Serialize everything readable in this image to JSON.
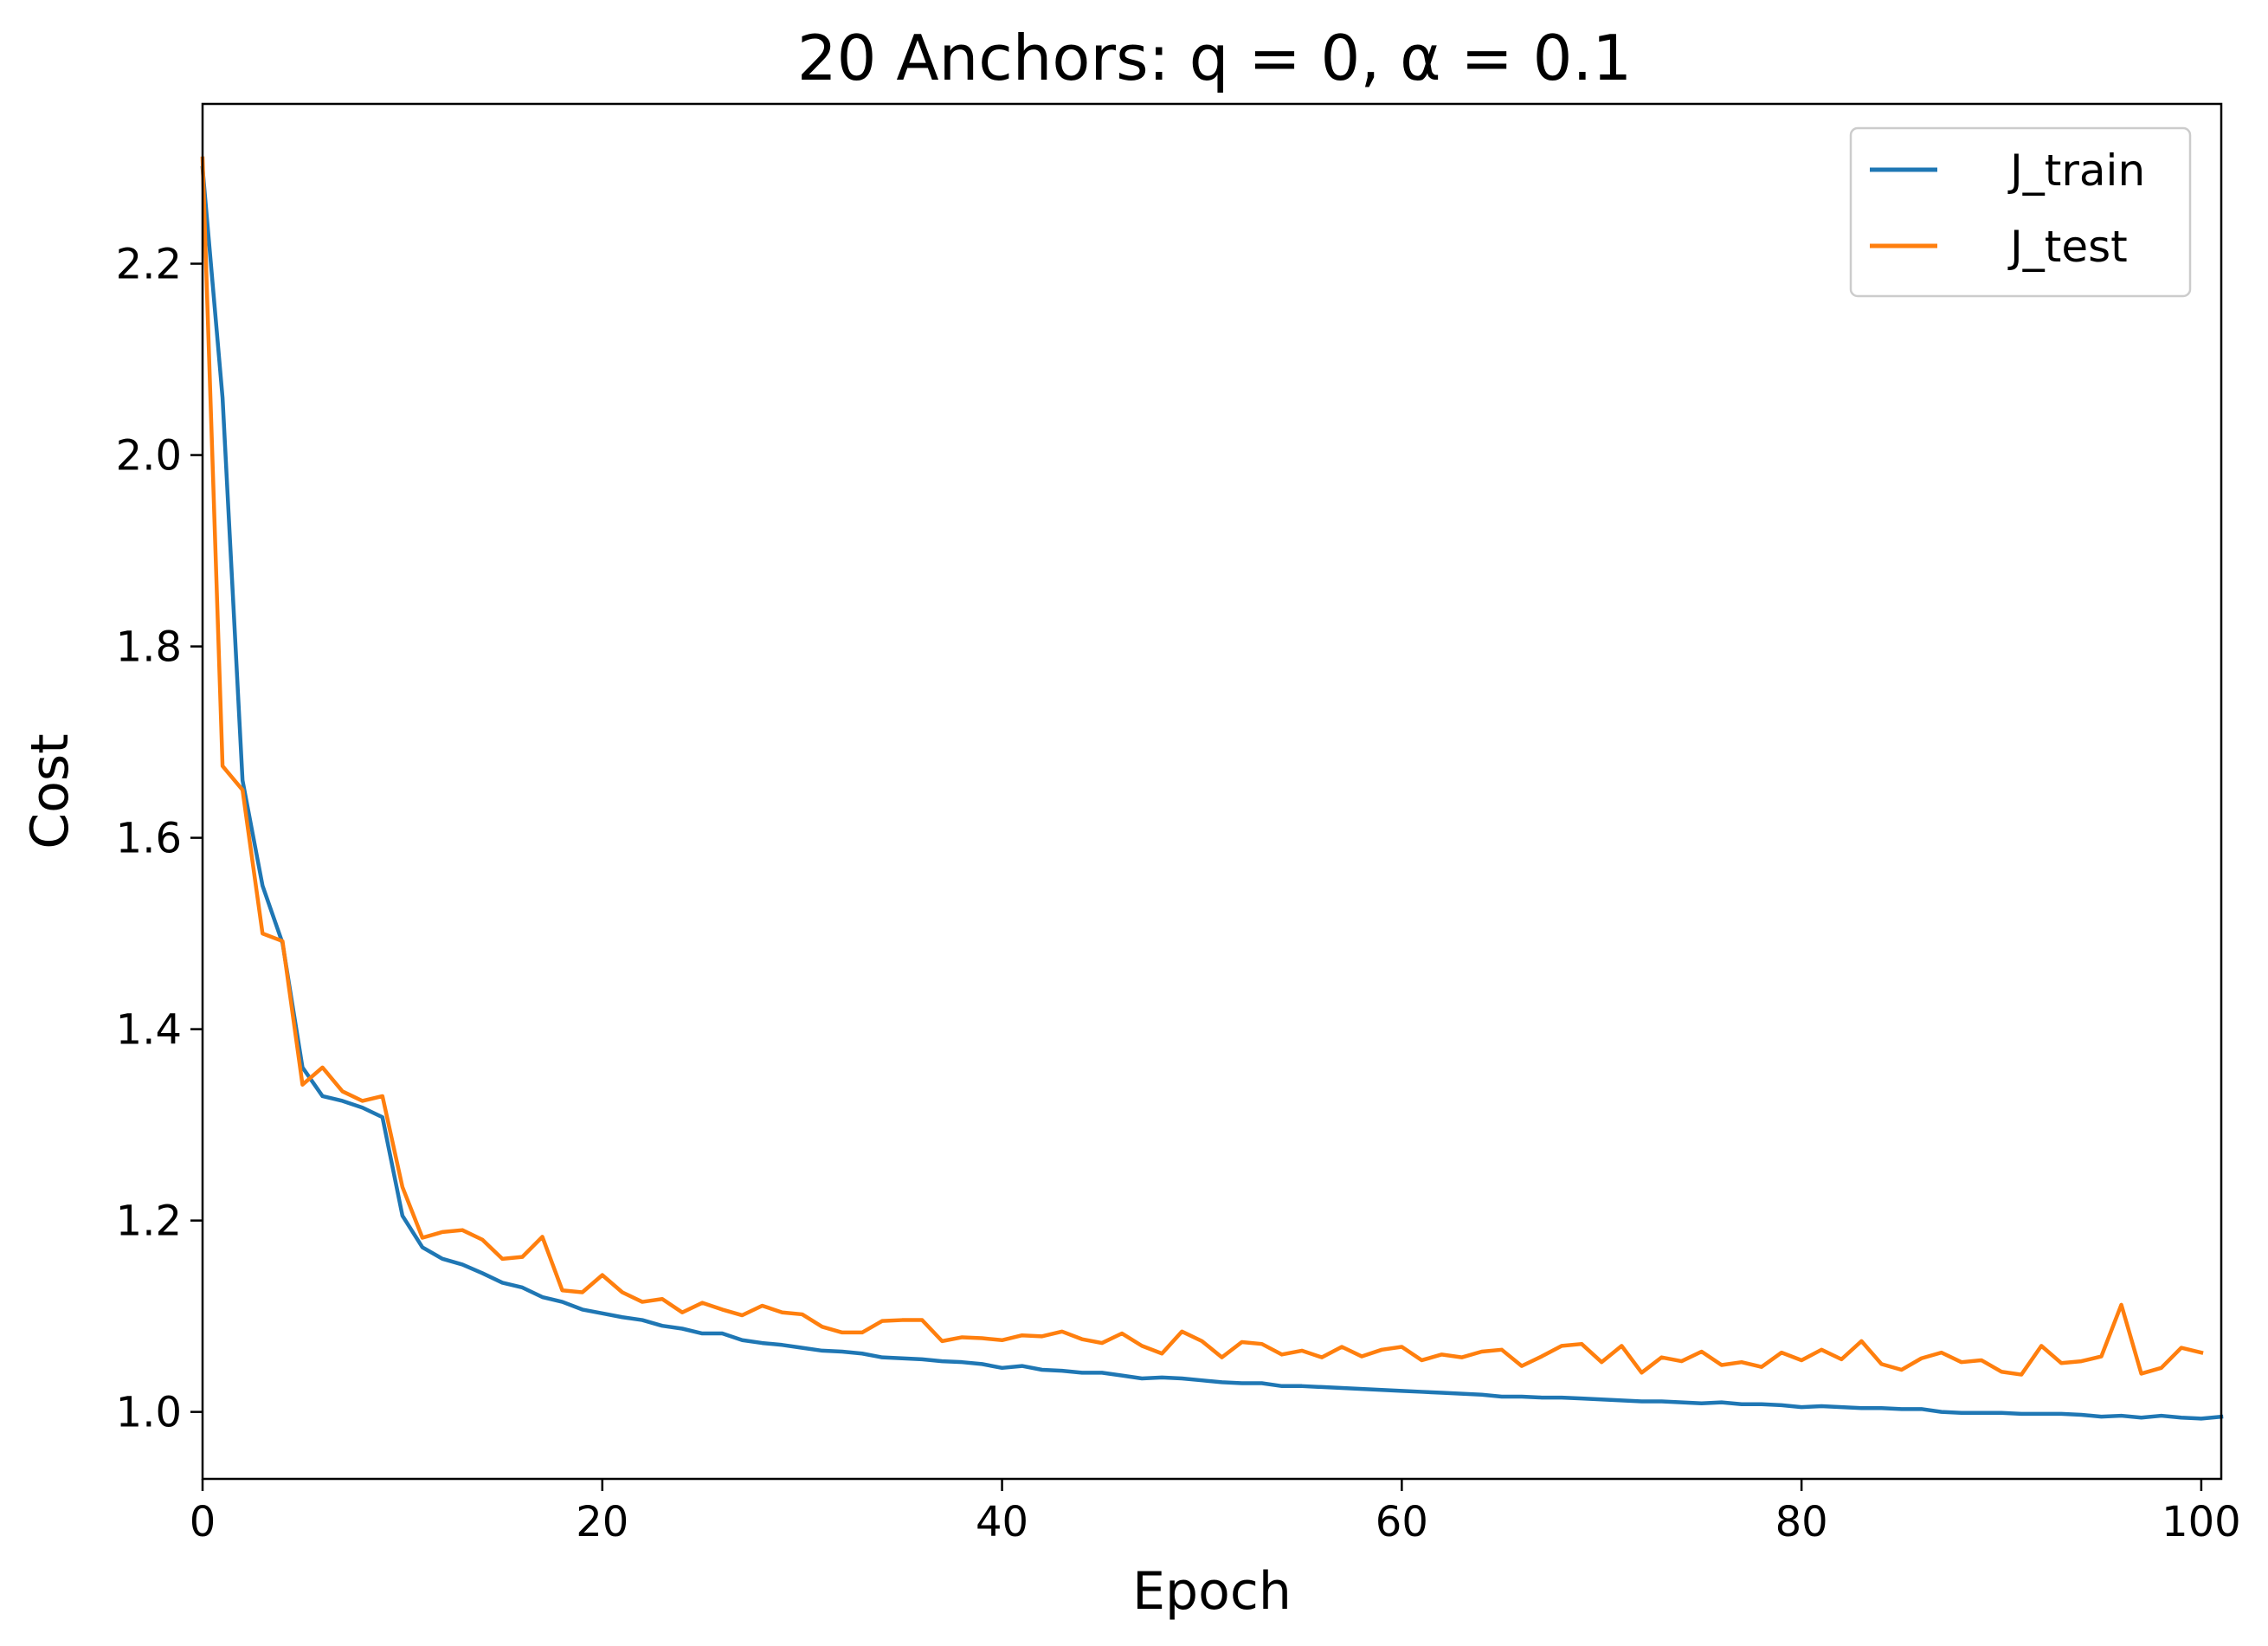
{
  "chart_data": {
    "type": "line",
    "title": "20 Anchors: q = 0, α = 0.1",
    "xlabel": "Epoch",
    "ylabel": "Cost",
    "xlim": [
      0,
      101
    ],
    "ylim": [
      0.93,
      2.367
    ],
    "xticks": [
      0,
      20,
      40,
      60,
      80,
      100
    ],
    "xtick_labels": [
      "0",
      "20",
      "40",
      "60",
      "80",
      "100"
    ],
    "yticks": [
      1.0,
      1.2,
      1.4,
      1.6,
      1.8,
      2.0,
      2.2
    ],
    "ytick_labels": [
      "1.0",
      "1.2",
      "1.4",
      "1.6",
      "1.8",
      "2.0",
      "2.2"
    ],
    "grid": false,
    "legend_position": "top-right",
    "series": [
      {
        "name": "J_train",
        "color": "#1f77b4",
        "values": [
          2.3,
          2.06,
          1.66,
          1.55,
          1.49,
          1.36,
          1.33,
          1.325,
          1.318,
          1.308,
          1.205,
          1.172,
          1.16,
          1.154,
          1.145,
          1.135,
          1.13,
          1.12,
          1.115,
          1.107,
          1.103,
          1.099,
          1.096,
          1.09,
          1.087,
          1.082,
          1.082,
          1.075,
          1.072,
          1.07,
          1.067,
          1.064,
          1.063,
          1.061,
          1.057,
          1.056,
          1.055,
          1.053,
          1.052,
          1.05,
          1.046,
          1.048,
          1.044,
          1.043,
          1.041,
          1.041,
          1.038,
          1.035,
          1.036,
          1.035,
          1.033,
          1.031,
          1.03,
          1.03,
          1.027,
          1.027,
          1.026,
          1.025,
          1.024,
          1.023,
          1.022,
          1.021,
          1.02,
          1.019,
          1.018,
          1.016,
          1.016,
          1.015,
          1.015,
          1.014,
          1.013,
          1.012,
          1.011,
          1.011,
          1.01,
          1.009,
          1.01,
          1.008,
          1.008,
          1.007,
          1.005,
          1.006,
          1.005,
          1.004,
          1.004,
          1.003,
          1.003,
          1.0,
          0.999,
          0.999,
          0.999,
          0.998,
          0.998,
          0.998,
          0.997,
          0.995,
          0.996,
          0.994,
          0.996,
          0.994,
          0.993,
          0.995
        ]
      },
      {
        "name": "J_test",
        "color": "#ff7f0e",
        "values": [
          2.31,
          1.675,
          1.65,
          1.5,
          1.492,
          1.342,
          1.36,
          1.335,
          1.325,
          1.33,
          1.235,
          1.182,
          1.188,
          1.19,
          1.18,
          1.16,
          1.162,
          1.183,
          1.127,
          1.125,
          1.143,
          1.125,
          1.115,
          1.118,
          1.104,
          1.114,
          1.107,
          1.101,
          1.111,
          1.104,
          1.102,
          1.089,
          1.083,
          1.083,
          1.095,
          1.096,
          1.096,
          1.074,
          1.078,
          1.077,
          1.075,
          1.08,
          1.079,
          1.084,
          1.076,
          1.072,
          1.082,
          1.069,
          1.061,
          1.084,
          1.074,
          1.057,
          1.073,
          1.071,
          1.06,
          1.064,
          1.057,
          1.068,
          1.058,
          1.065,
          1.068,
          1.054,
          1.06,
          1.057,
          1.063,
          1.065,
          1.048,
          1.058,
          1.069,
          1.071,
          1.052,
          1.069,
          1.041,
          1.057,
          1.053,
          1.063,
          1.049,
          1.052,
          1.047,
          1.062,
          1.054,
          1.065,
          1.055,
          1.074,
          1.05,
          1.044,
          1.056,
          1.062,
          1.052,
          1.054,
          1.042,
          1.039,
          1.069,
          1.051,
          1.053,
          1.058,
          1.112,
          1.04,
          1.046,
          1.067,
          1.062
        ]
      }
    ]
  }
}
